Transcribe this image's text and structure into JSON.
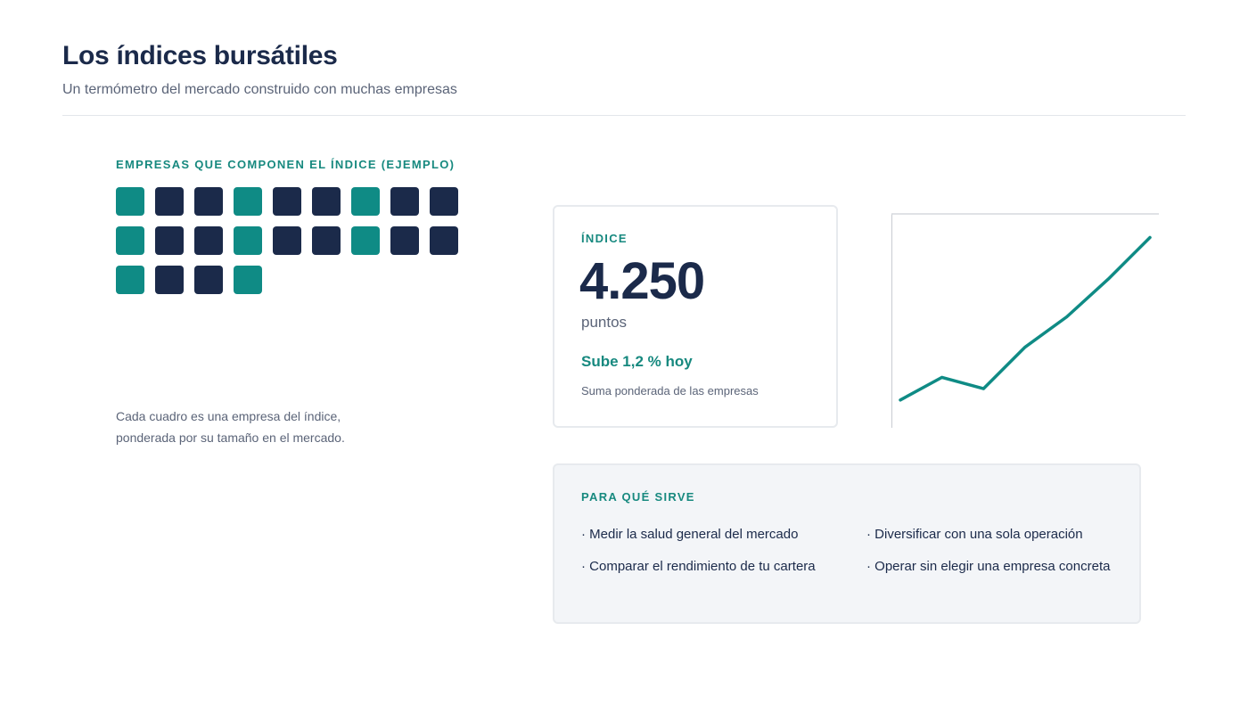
{
  "header": {
    "title": "Los índices bursátiles",
    "subtitle": "Un termómetro del mercado construido con muchas empresas"
  },
  "companies": {
    "heading": "EMPRESAS QUE COMPONEN EL ÍNDICE (EJEMPLO)",
    "squares": [
      "teal",
      "navy",
      "navy",
      "teal",
      "navy",
      "navy",
      "teal",
      "navy",
      "navy",
      "teal",
      "navy",
      "navy",
      "teal",
      "navy",
      "navy",
      "teal",
      "navy",
      "navy",
      "teal",
      "navy",
      "navy",
      "teal"
    ],
    "caption_line1": "Cada cuadro es una empresa del índice,",
    "caption_line2": "ponderada por su tamaño en el mercado."
  },
  "index_card": {
    "label": "ÍNDICE",
    "value": "4.250",
    "unit": "puntos",
    "change": "Sube 1,2 % hoy",
    "note": "Suma ponderada de las empresas"
  },
  "chart_data": {
    "type": "line",
    "x": [
      0,
      1,
      2,
      3,
      4,
      5,
      6
    ],
    "y": [
      10,
      22,
      16,
      38,
      54,
      74,
      96
    ],
    "ylim": [
      0,
      100
    ],
    "grid": false,
    "color": "#0f8b85"
  },
  "uses": {
    "heading": "PARA QUÉ SIRVE",
    "items": [
      "· Medir la salud general del mercado",
      "· Diversificar con una sola operación",
      "· Comparar el rendimiento de tu cartera",
      "· Operar sin elegir una empresa concreta"
    ]
  },
  "colors": {
    "navy": "#1b2a4a",
    "teal": "#0f8b85",
    "muted": "#5b6478"
  }
}
